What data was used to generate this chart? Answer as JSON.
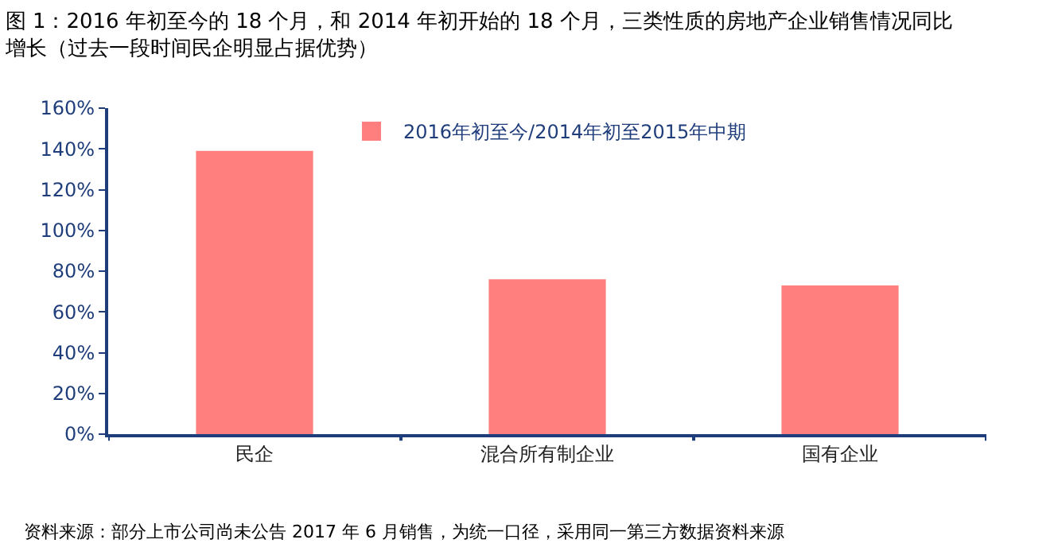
{
  "chart_data": {
    "type": "bar",
    "title": "图 1：2016 年初至今的 18 个月，和 2014 年初开始的 18 个月，三类性质的房地产企业销售情况同比增长（过去一段时间民企明显占据优势）",
    "categories": [
      "民企",
      "混合所有制企业",
      "国有企业"
    ],
    "series": [
      {
        "name": "2016年初至今/2014年初至2015年中期",
        "color": "#ff7f7f",
        "values": [
          139,
          76,
          73
        ]
      }
    ],
    "ylim": [
      0,
      160
    ],
    "yticks": [
      {
        "value": 0,
        "label": "0%"
      },
      {
        "value": 20,
        "label": "20%"
      },
      {
        "value": 40,
        "label": "40%"
      },
      {
        "value": 60,
        "label": "60%"
      },
      {
        "value": 80,
        "label": "80%"
      },
      {
        "value": 100,
        "label": "100%"
      },
      {
        "value": 120,
        "label": "120%"
      },
      {
        "value": 140,
        "label": "140%"
      },
      {
        "value": 160,
        "label": "160%"
      }
    ],
    "legend": "top",
    "annotations": [
      "资料来源：部分上市公司尚未公告 2017 年 6 月销售，为统一口径，采用同一第三方数据资料来源"
    ]
  }
}
